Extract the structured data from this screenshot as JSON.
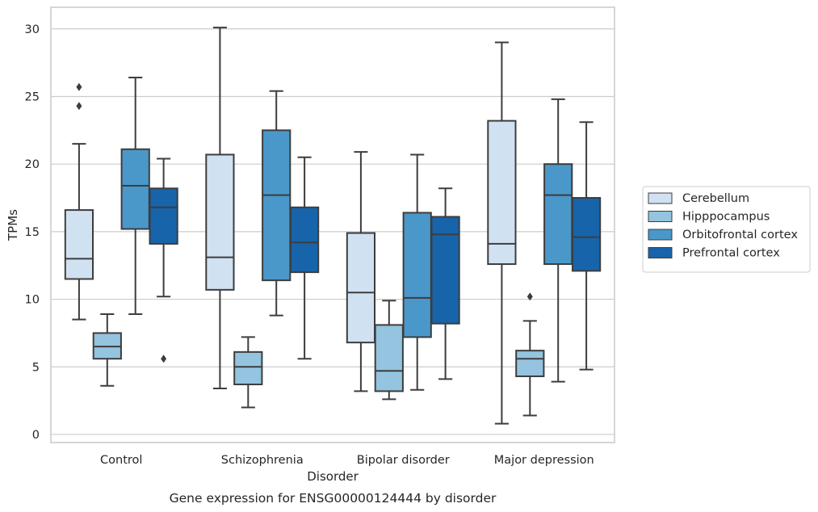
{
  "chart_data": {
    "type": "box",
    "caption": "Gene expression for ENSG00000124444 by disorder",
    "xlabel": "Disorder",
    "ylabel": "TPMs",
    "ylim": [
      -0.6,
      31.6
    ],
    "yticks": [
      0,
      5,
      10,
      15,
      20,
      25,
      30
    ],
    "grid": "horizontal",
    "legend_position": "right",
    "categories": [
      "Control",
      "Schizophrenia",
      "Bipolar disorder",
      "Major depression"
    ],
    "series": [
      {
        "name": "Cerebellum",
        "color": "#d0e1f2",
        "boxes": [
          {
            "whisker_low": 8.5,
            "q1": 11.5,
            "median": 13.0,
            "q3": 16.6,
            "whisker_high": 21.5,
            "outliers": [
              24.3,
              25.7
            ]
          },
          {
            "whisker_low": 3.4,
            "q1": 10.7,
            "median": 13.1,
            "q3": 20.7,
            "whisker_high": 30.1,
            "outliers": []
          },
          {
            "whisker_low": 3.2,
            "q1": 6.8,
            "median": 10.5,
            "q3": 14.9,
            "whisker_high": 20.9,
            "outliers": []
          },
          {
            "whisker_low": 0.8,
            "q1": 12.6,
            "median": 14.1,
            "q3": 23.2,
            "whisker_high": 29.0,
            "outliers": []
          }
        ]
      },
      {
        "name": "Hipppocampus",
        "color": "#94c4df",
        "boxes": [
          {
            "whisker_low": 3.6,
            "q1": 5.6,
            "median": 6.5,
            "q3": 7.5,
            "whisker_high": 8.9,
            "outliers": []
          },
          {
            "whisker_low": 2.0,
            "q1": 3.7,
            "median": 5.0,
            "q3": 6.1,
            "whisker_high": 7.2,
            "outliers": []
          },
          {
            "whisker_low": 2.6,
            "q1": 3.2,
            "median": 4.7,
            "q3": 8.1,
            "whisker_high": 9.9,
            "outliers": []
          },
          {
            "whisker_low": 1.4,
            "q1": 4.3,
            "median": 5.6,
            "q3": 6.2,
            "whisker_high": 8.4,
            "outliers": [
              10.2
            ]
          }
        ]
      },
      {
        "name": "Orbitofrontal cortex",
        "color": "#4a98c9",
        "boxes": [
          {
            "whisker_low": 8.9,
            "q1": 15.2,
            "median": 18.4,
            "q3": 21.1,
            "whisker_high": 26.4,
            "outliers": []
          },
          {
            "whisker_low": 8.8,
            "q1": 11.4,
            "median": 17.7,
            "q3": 22.5,
            "whisker_high": 25.4,
            "outliers": []
          },
          {
            "whisker_low": 3.3,
            "q1": 7.2,
            "median": 10.1,
            "q3": 16.4,
            "whisker_high": 20.7,
            "outliers": []
          },
          {
            "whisker_low": 3.9,
            "q1": 12.6,
            "median": 17.7,
            "q3": 20.0,
            "whisker_high": 24.8,
            "outliers": []
          }
        ]
      },
      {
        "name": "Prefrontal cortex",
        "color": "#1764ab",
        "boxes": [
          {
            "whisker_low": 10.2,
            "q1": 14.1,
            "median": 16.8,
            "q3": 18.2,
            "whisker_high": 20.4,
            "outliers": [
              5.6
            ]
          },
          {
            "whisker_low": 5.6,
            "q1": 12.0,
            "median": 14.2,
            "q3": 16.8,
            "whisker_high": 20.5,
            "outliers": []
          },
          {
            "whisker_low": 4.1,
            "q1": 8.2,
            "median": 14.8,
            "q3": 16.1,
            "whisker_high": 18.2,
            "outliers": []
          },
          {
            "whisker_low": 4.8,
            "q1": 12.1,
            "median": 14.6,
            "q3": 17.5,
            "whisker_high": 23.1,
            "outliers": []
          }
        ]
      }
    ]
  }
}
